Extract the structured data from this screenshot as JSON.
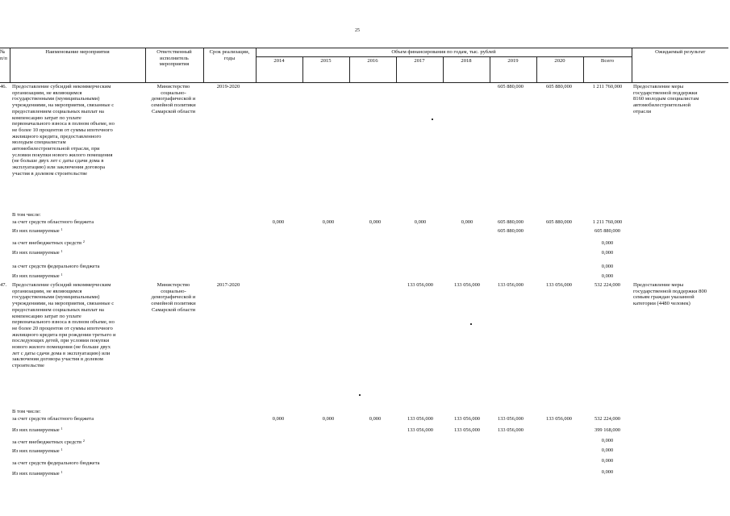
{
  "page_number": "25",
  "header": {
    "col_no": "№\nп/п",
    "col_name": "Наименование мероприятия",
    "col_responsible": "Ответственный\nисполнитель\nмероприятия",
    "col_period": "Срок реализации,\nгоды",
    "col_financing": "Объем финансирования по годам, тыс. рублей",
    "col_result": "Ожидаемый результат",
    "years": [
      "2014",
      "2015",
      "2016",
      "2017",
      "2018",
      "2019",
      "2020",
      "Всего"
    ]
  },
  "rows": [
    {
      "no": "46.",
      "name": "Предоставление субсидий некоммерческим\nорганизациям, не являющимся\nгосударственными (муниципальными)\nучреждениями, на мероприятия, связанные с\nпредоставлением социальных выплат на\nкомпенсацию затрат по уплате\nпервоначального взноса в полном объеме, но\nне более 10 процентов от суммы ипотечного\nжилищного кредита, предоставленного\nмолодым специалистам\nавтомобилестроительной отрасли, при\nусловии покупки нового жилого помещения\n(не больше двух лет с даты сдачи дома в\nэксплуатацию) или заключения договора\nучастия в долевом строительстве",
      "responsible": "Министерство\nсоциально-\nдемографической и\nсемейной политики\nСамарской области",
      "period": "2019-2020",
      "values": [
        "",
        "",
        "",
        "",
        "",
        "605 880,000",
        "605 880,000",
        "1 211 760,000"
      ],
      "result": "Предоставление меры\nгосударственной поддержки\n8160 молодым специалистам\nавтомобилестроительной\nотрасли",
      "sub": {
        "intro": "В том числе:",
        "lines": [
          {
            "label": "за счет средств областного бюджета",
            "sup": "",
            "values": [
              "0,000",
              "0,000",
              "0,000",
              "0,000",
              "0,000",
              "605 880,000",
              "605 880,000",
              "1 211 760,000"
            ]
          },
          {
            "label": "Из них планируемые",
            "sup": "1",
            "values": [
              "",
              "",
              "",
              "",
              "",
              "605 880,000",
              "",
              "605 880,000"
            ]
          },
          {
            "label": "за счет внебюджетных средств",
            "sup": "2",
            "values": [
              "",
              "",
              "",
              "",
              "",
              "",
              "",
              "0,000"
            ]
          },
          {
            "label": "Из них планируемые",
            "sup": "1",
            "values": [
              "",
              "",
              "",
              "",
              "",
              "",
              "",
              "0,000"
            ]
          },
          {
            "label": "за счет средств федерального бюджета",
            "sup": "",
            "values": [
              "",
              "",
              "",
              "",
              "",
              "",
              "",
              "0,000"
            ]
          },
          {
            "label": "Из них планируемые",
            "sup": "1",
            "values": [
              "",
              "",
              "",
              "",
              "",
              "",
              "",
              "0,000"
            ]
          }
        ]
      }
    },
    {
      "no": "47.",
      "name": "Предоставление субсидий некоммерческим\nорганизациям, не являющимся\nгосударственными (муниципальными)\nучреждениями, на мероприятия, связанные с\nпредоставлением социальных выплат на\nкомпенсацию затрат по уплате\nпервоначального взноса в полном объеме, но\nне более 20 процентов от суммы ипотечного\nжилищного кредита при рождении третьего и\nпоследующих детей, при условии покупки\nнового жилого помещения (не больше двух\nлет с даты сдачи дома в эксплуатацию) или\nзаключения договора участия в долевом\nстроительстве",
      "responsible": "Министерство\nсоциально-\nдемографической и\nсемейной политики\nСамарской области",
      "period": "2017-2020",
      "values": [
        "",
        "",
        "",
        "133 056,000",
        "133 056,000",
        "133 056,000",
        "133 056,000",
        "532 224,000"
      ],
      "result": "Предоставление меры\nгосударственной поддержки 800\nсемьям граждан указанной\nкатегории (4480 человек)",
      "sub": {
        "intro": "В том числе:",
        "lines": [
          {
            "label": "за счет средств областного бюджета",
            "sup": "",
            "values": [
              "0,000",
              "0,000",
              "0,000",
              "133 056,000",
              "133 056,000",
              "133 056,000",
              "133 056,000",
              "532 224,000"
            ]
          },
          {
            "label": "Из них планируемые",
            "sup": "1",
            "values": [
              "",
              "",
              "",
              "133 056,000",
              "133 056,000",
              "133 056,000",
              "",
              "399 168,000"
            ]
          },
          {
            "label": "за счет внебюджетных средств",
            "sup": "2",
            "values": [
              "",
              "",
              "",
              "",
              "",
              "",
              "",
              "0,000"
            ]
          },
          {
            "label": "Из них планируемые",
            "sup": "1",
            "values": [
              "",
              "",
              "",
              "",
              "",
              "",
              "",
              "0,000"
            ]
          },
          {
            "label": "за счет средств федерального бюджета",
            "sup": "",
            "values": [
              "",
              "",
              "",
              "",
              "",
              "",
              "",
              "0,000"
            ]
          },
          {
            "label": "Из них планируемые",
            "sup": "1",
            "values": [
              "",
              "",
              "",
              "",
              "",
              "",
              "",
              "0,000"
            ]
          }
        ]
      }
    }
  ]
}
